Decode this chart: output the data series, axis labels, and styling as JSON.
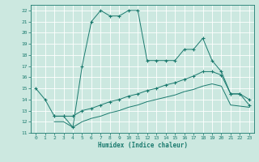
{
  "xlabel": "Humidex (Indice chaleur)",
  "background_color": "#cce8e0",
  "grid_color": "#aacccc",
  "line_color": "#1a7a6e",
  "xlim": [
    -0.5,
    23.5
  ],
  "ylim": [
    11,
    22.5
  ],
  "xticks": [
    0,
    1,
    2,
    3,
    4,
    5,
    6,
    7,
    8,
    9,
    10,
    11,
    12,
    13,
    14,
    15,
    16,
    17,
    18,
    19,
    20,
    21,
    22,
    23
  ],
  "yticks": [
    11,
    12,
    13,
    14,
    15,
    16,
    17,
    18,
    19,
    20,
    21,
    22
  ],
  "series": [
    {
      "x": [
        0,
        1,
        2,
        3,
        4,
        5,
        6,
        7,
        8,
        9,
        10,
        11,
        12,
        13,
        14,
        15,
        16,
        17,
        18,
        19,
        20,
        21,
        22,
        23
      ],
      "y": [
        15,
        14,
        12.5,
        12.5,
        11.5,
        17,
        21,
        22,
        21.5,
        21.5,
        22,
        22,
        17.5,
        17.5,
        17.5,
        17.5,
        18.5,
        18.5,
        19.5,
        17.5,
        16.5,
        14.5,
        14.5,
        14
      ],
      "marker": true
    },
    {
      "x": [
        2,
        3,
        4,
        5,
        6,
        7,
        8,
        9,
        10,
        11,
        12,
        13,
        14,
        15,
        16,
        17,
        18,
        19,
        20,
        21,
        22,
        23
      ],
      "y": [
        12.5,
        12.5,
        12.5,
        13.0,
        13.2,
        13.5,
        13.8,
        14.0,
        14.3,
        14.5,
        14.8,
        15.0,
        15.3,
        15.5,
        15.8,
        16.1,
        16.5,
        16.5,
        16.2,
        14.5,
        14.5,
        13.5
      ],
      "marker": true
    },
    {
      "x": [
        2,
        3,
        4,
        5,
        6,
        7,
        8,
        9,
        10,
        11,
        12,
        13,
        14,
        15,
        16,
        17,
        18,
        19,
        20,
        21,
        22,
        23
      ],
      "y": [
        12.0,
        12.0,
        11.5,
        12.0,
        12.3,
        12.5,
        12.8,
        13.0,
        13.3,
        13.5,
        13.8,
        14.0,
        14.2,
        14.4,
        14.7,
        14.9,
        15.2,
        15.4,
        15.2,
        13.5,
        13.4,
        13.3
      ],
      "marker": false
    }
  ]
}
